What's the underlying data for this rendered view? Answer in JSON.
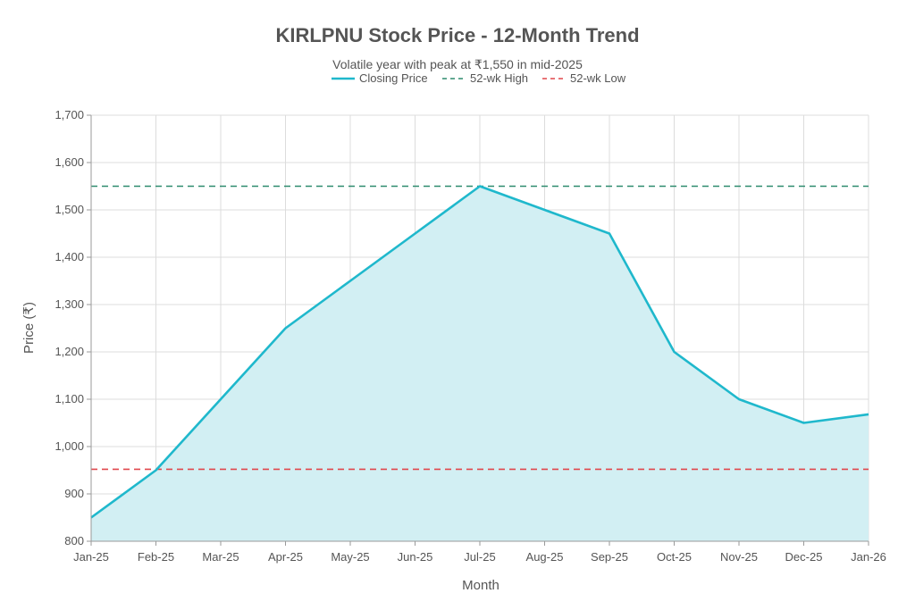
{
  "chart_data": {
    "type": "line",
    "title": "KIRLPNU Stock Price - 12-Month Trend",
    "subtitle": "Volatile year with peak at ₹1,550 in mid-2025",
    "xlabel": "Month",
    "ylabel": "Price (₹)",
    "categories": [
      "Jan-25",
      "Feb-25",
      "Mar-25",
      "Apr-25",
      "May-25",
      "Jun-25",
      "Jul-25",
      "Aug-25",
      "Sep-25",
      "Oct-25",
      "Nov-25",
      "Dec-25",
      "Jan-26"
    ],
    "series": [
      {
        "name": "Closing Price",
        "values": [
          850,
          950,
          1100,
          1250,
          1350,
          1450,
          1550,
          1500,
          1450,
          1200,
          1100,
          1050,
          1068
        ],
        "color": "#1fb8cc",
        "fill": "#d2eff3"
      }
    ],
    "reference_lines": [
      {
        "name": "52-wk High",
        "value": 1550,
        "color": "#2e8b6e"
      },
      {
        "name": "52-wk Low",
        "value": 952,
        "color": "#e0474c"
      }
    ],
    "ylim": [
      800,
      1700
    ],
    "yticks": [
      "800",
      "900",
      "1,000",
      "1,100",
      "1,200",
      "1,300",
      "1,400",
      "1,500",
      "1,600",
      "1,700"
    ],
    "ytick_values": [
      800,
      900,
      1000,
      1100,
      1200,
      1300,
      1400,
      1500,
      1600,
      1700
    ],
    "grid": true,
    "legend_position": "top-center"
  }
}
